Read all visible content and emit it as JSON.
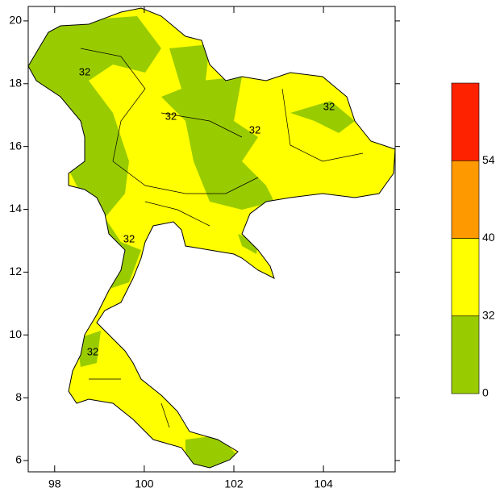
{
  "map": {
    "xlim": [
      97.41,
      105.6
    ],
    "ylim": [
      5.64,
      20.46
    ],
    "xticks": [
      98,
      100,
      102,
      104
    ],
    "yticks": [
      6,
      8,
      10,
      12,
      14,
      16,
      18,
      20
    ],
    "colorbar": {
      "levels": [
        0,
        32,
        40,
        54
      ],
      "colors": [
        "#99cc00",
        "#ffff00",
        "#ff9900",
        "#ff2200"
      ]
    },
    "contour_labels": [
      32,
      32,
      32,
      32,
      32,
      32
    ]
  }
}
